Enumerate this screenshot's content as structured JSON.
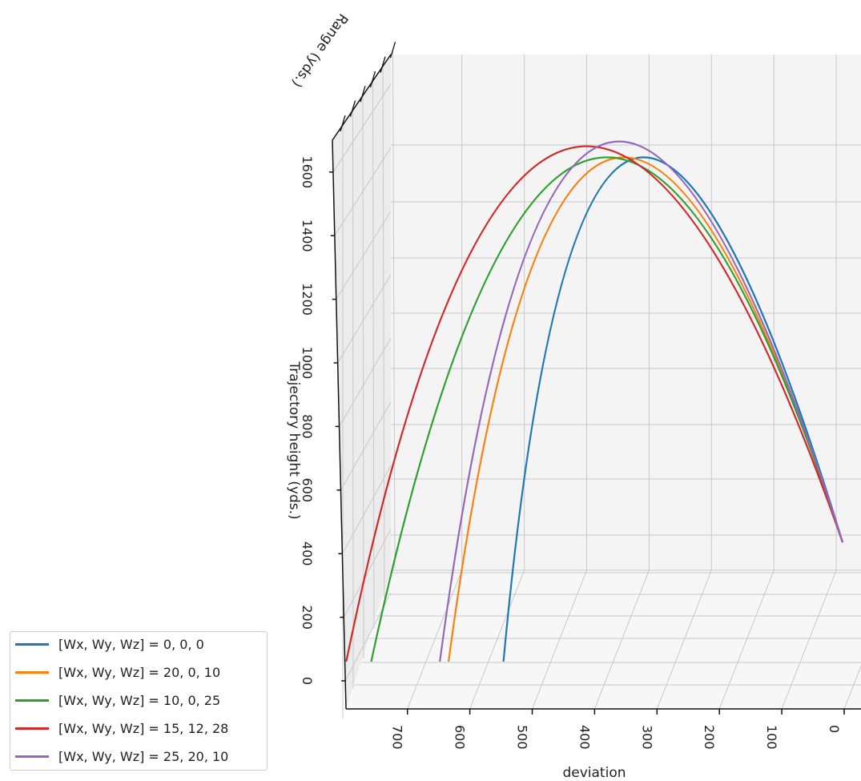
{
  "chart_data": {
    "type": "line",
    "projection": "3d",
    "xlabel": "deviation",
    "ylabel": "Range (yds.)",
    "zlabel": "Trajectory height (yds.)",
    "x_ticks": [
      0,
      100,
      200,
      300,
      400,
      500,
      600,
      700
    ],
    "z_ticks": [
      0,
      200,
      400,
      600,
      800,
      1000,
      1200,
      1400,
      1600
    ],
    "grid": true,
    "legend_position": "bottom-left outside",
    "series": [
      {
        "name": "[Wx, Wy, Wz] = 0, 0, 0",
        "color": "#1f77b4",
        "landing_deviation": 523,
        "apex_deviation": 340,
        "max_height": 1640
      },
      {
        "name": "[Wx, Wy, Wz] = 20, 0, 10",
        "color": "#ff7f0e",
        "landing_deviation": 611,
        "apex_deviation": 375,
        "max_height": 1640
      },
      {
        "name": "[Wx, Wy, Wz] = 10, 0, 25",
        "color": "#2ca02c",
        "landing_deviation": 735,
        "apex_deviation": 406,
        "max_height": 1640
      },
      {
        "name": "[Wx, Wy, Wz] = 15, 12, 28",
        "color": "#d62728",
        "landing_deviation": 775,
        "apex_deviation": 439,
        "max_height": 1675
      },
      {
        "name": "[Wx, Wy, Wz] = 25, 20, 10",
        "color": "#9467bd",
        "landing_deviation": 625,
        "apex_deviation": 382,
        "max_height": 1690
      }
    ]
  }
}
